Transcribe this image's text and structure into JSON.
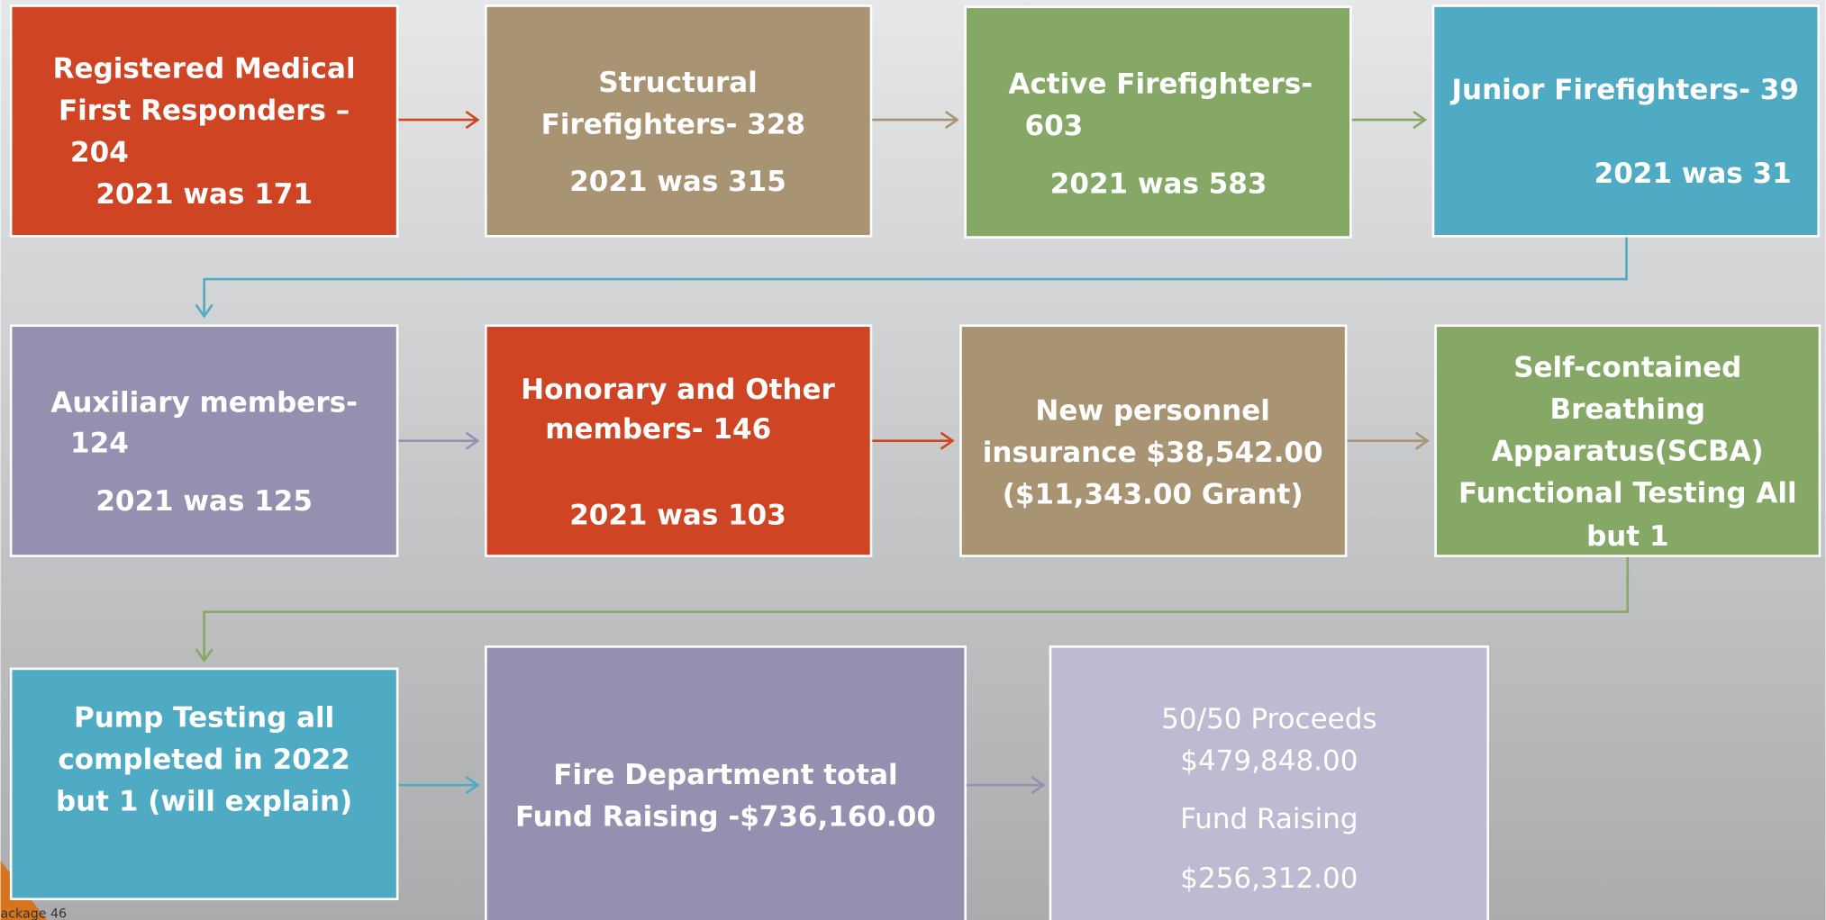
{
  "nodes": [
    {
      "lines": [
        "Registered Medical",
        "First Responders –",
        "204",
        "2021 was 171"
      ]
    },
    {
      "lines": [
        "Structural",
        "Firefighters- 328",
        "2021 was 315"
      ]
    },
    {
      "lines": [
        "Active Firefighters-",
        "603",
        "2021 was 583"
      ]
    },
    {
      "lines": [
        "Junior Firefighters- 39",
        "2021 was 31"
      ]
    },
    {
      "lines": [
        "Auxiliary members-",
        "124",
        "2021 was 125"
      ]
    },
    {
      "lines": [
        "Honorary and Other",
        "members- 146",
        "2021 was 103"
      ]
    },
    {
      "lines": [
        "New personnel",
        "insurance $38,542.00",
        "($11,343.00 Grant)"
      ]
    },
    {
      "lines": [
        "Self-contained",
        "Breathing",
        "Apparatus(SCBA)",
        "Functional Testing All",
        "but 1"
      ]
    },
    {
      "lines": [
        "Pump Testing all",
        "completed in 2022",
        "but 1 (will explain)"
      ]
    },
    {
      "lines": [
        "Fire Department total",
        "Fund Raising -$736,160.00"
      ]
    },
    {
      "lines": [
        "50/50 Proceeds",
        "$479,848.00",
        "Fund Raising",
        "$256,312.00"
      ]
    }
  ],
  "footer": "ackage 46"
}
